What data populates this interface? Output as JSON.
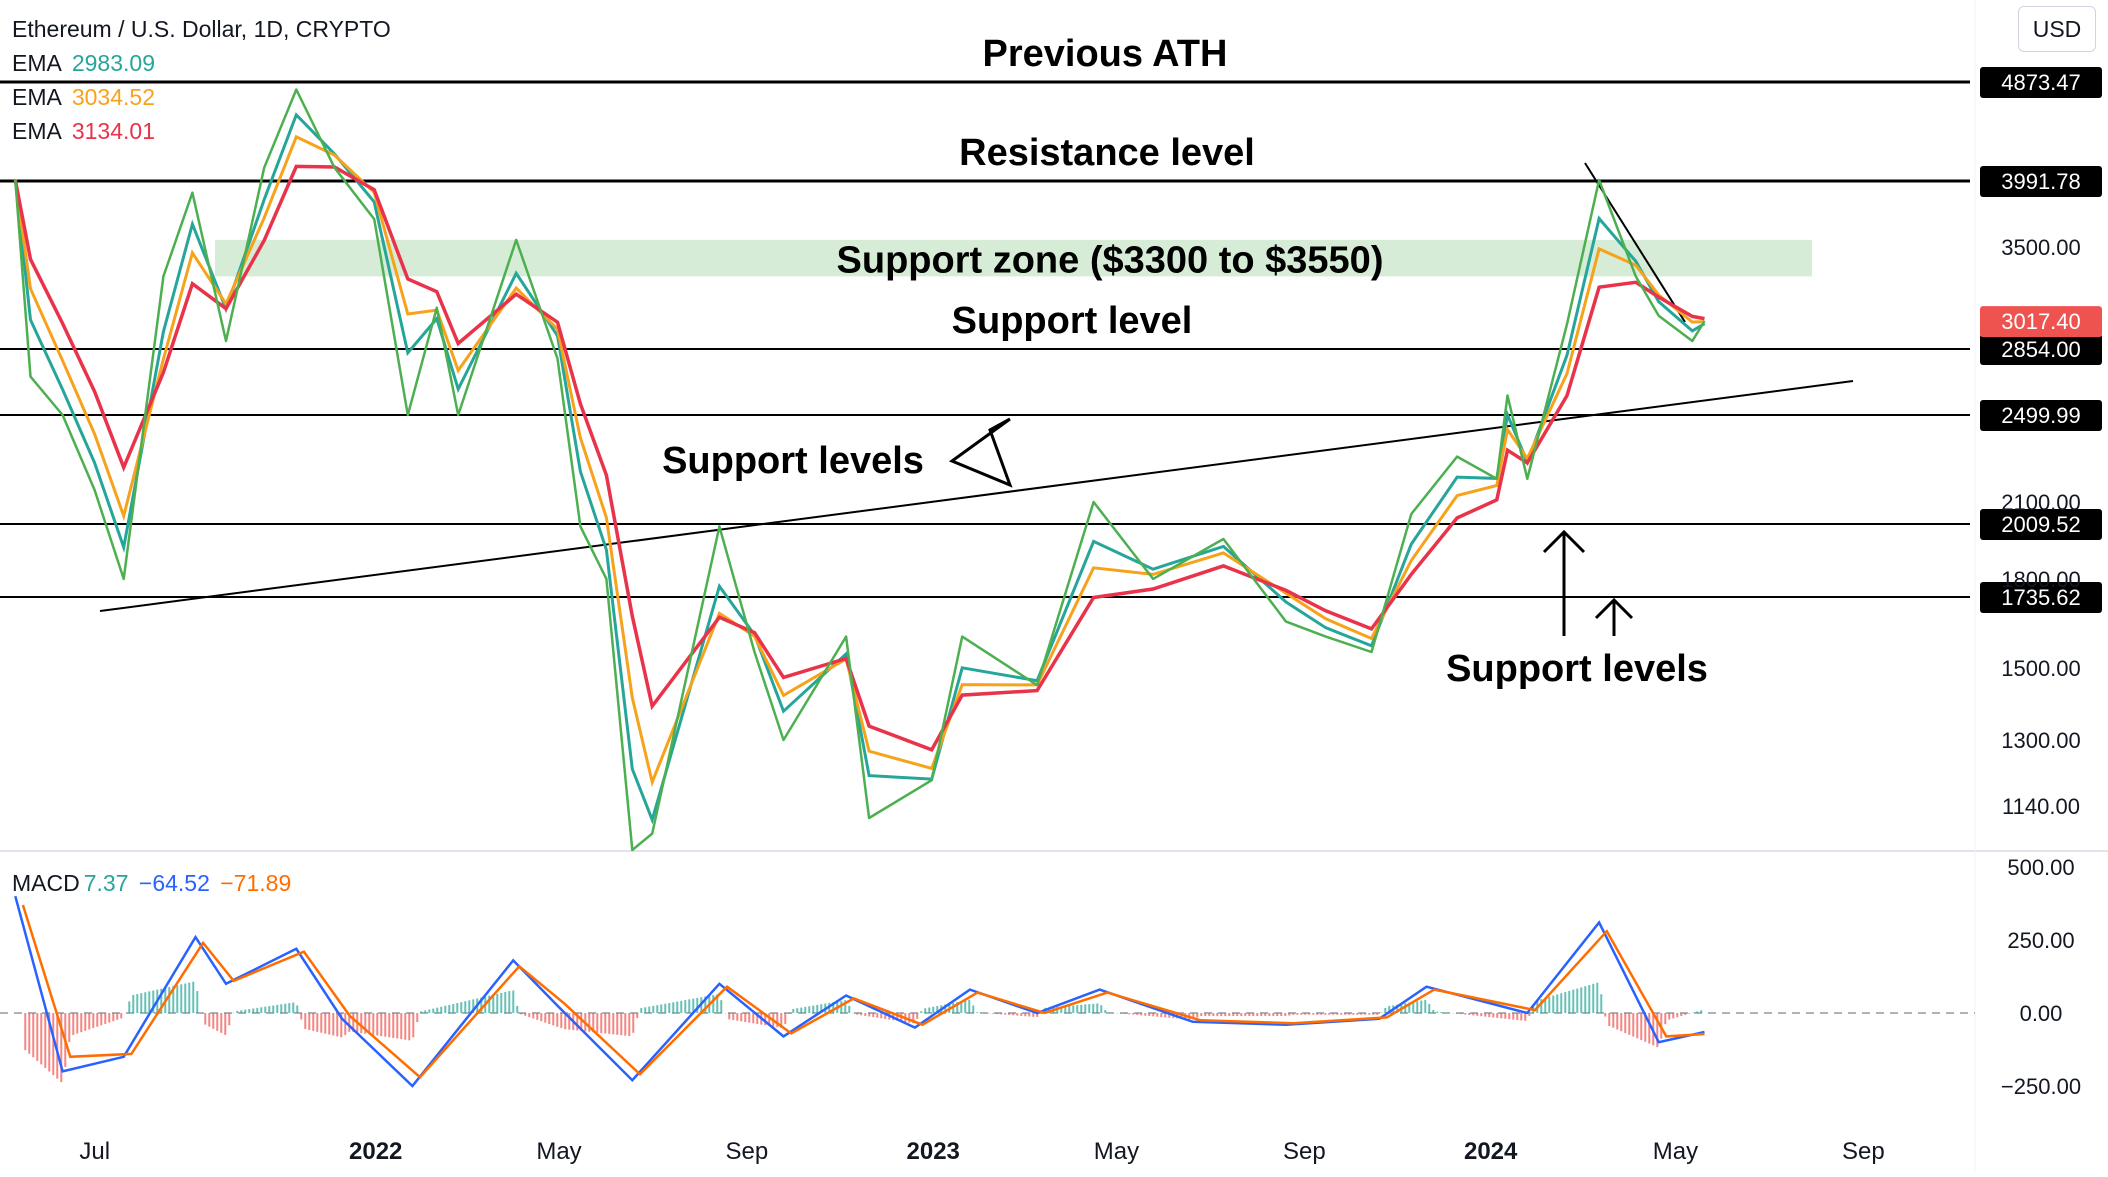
{
  "header": {
    "symbol_title": "Ethereum / U.S. Dollar, 1D, CRYPTO",
    "currency_button": "USD",
    "ema_legend": [
      {
        "label": "EMA",
        "value": "2983.09",
        "color": "#26a69a"
      },
      {
        "label": "EMA",
        "value": "3034.52",
        "color": "#f7a21b"
      },
      {
        "label": "EMA",
        "value": "3134.01",
        "color": "#e8334a"
      }
    ]
  },
  "chart_data": [
    {
      "type": "line",
      "title": "Ethereum / U.S. Dollar, 1D, CRYPTO",
      "price_axis_ticks": [
        "3500.00",
        "2100.00",
        "1800.00",
        "1500.00",
        "1300.00",
        "1140.00"
      ],
      "time_axis_ticks": [
        "Jul",
        "2022",
        "May",
        "Sep",
        "2023",
        "May",
        "Sep",
        "2024",
        "May",
        "Sep"
      ],
      "current_price": "3017.40",
      "horizontal_levels": [
        {
          "label": "Previous ATH",
          "price": 4873.47,
          "price_label": "4873.47"
        },
        {
          "label": "Resistance level",
          "price": 3991.78,
          "price_label": "3991.78"
        },
        {
          "label": "Support level",
          "price": 2854.0,
          "price_label": "2854.00"
        },
        {
          "label": "",
          "price": 2499.99,
          "price_label": "2499.99"
        },
        {
          "label": "",
          "price": 2009.52,
          "price_label": "2009.52"
        },
        {
          "label": "",
          "price": 1735.62,
          "price_label": "1735.62"
        }
      ],
      "support_zone": {
        "label": "Support zone ($3300 to $3550)",
        "low": 3300,
        "high": 3550
      },
      "annotations": [
        "Support levels",
        "Support levels"
      ],
      "series": [
        {
          "name": "ETH/USD",
          "color": "#4caf50",
          "points": [
            [
              "2021-05-10",
              4000
            ],
            [
              "2021-05-20",
              2700
            ],
            [
              "2021-06-10",
              2500
            ],
            [
              "2021-07-01",
              2150
            ],
            [
              "2021-07-20",
              1800
            ],
            [
              "2021-08-15",
              3300
            ],
            [
              "2021-09-03",
              3900
            ],
            [
              "2021-09-25",
              2900
            ],
            [
              "2021-10-20",
              4100
            ],
            [
              "2021-11-10",
              4800
            ],
            [
              "2021-12-05",
              4100
            ],
            [
              "2021-12-31",
              3700
            ],
            [
              "2022-01-22",
              2500
            ],
            [
              "2022-02-10",
              3100
            ],
            [
              "2022-02-24",
              2500
            ],
            [
              "2022-04-03",
              3550
            ],
            [
              "2022-04-30",
              2800
            ],
            [
              "2022-05-15",
              2000
            ],
            [
              "2022-06-01",
              1800
            ],
            [
              "2022-06-18",
              1000
            ],
            [
              "2022-07-01",
              1050
            ],
            [
              "2022-08-14",
              2000
            ],
            [
              "2022-09-06",
              1550
            ],
            [
              "2022-09-25",
              1300
            ],
            [
              "2022-11-05",
              1600
            ],
            [
              "2022-11-20",
              1100
            ],
            [
              "2022-12-31",
              1200
            ],
            [
              "2023-01-20",
              1600
            ],
            [
              "2023-03-10",
              1450
            ],
            [
              "2023-04-16",
              2100
            ],
            [
              "2023-05-25",
              1800
            ],
            [
              "2023-07-10",
              1950
            ],
            [
              "2023-08-20",
              1650
            ],
            [
              "2023-09-15",
              1600
            ],
            [
              "2023-10-15",
              1550
            ],
            [
              "2023-11-10",
              2050
            ],
            [
              "2023-12-10",
              2300
            ],
            [
              "2024-01-05",
              2200
            ],
            [
              "2024-01-12",
              2600
            ],
            [
              "2024-01-25",
              2200
            ],
            [
              "2024-02-20",
              3000
            ],
            [
              "2024-03-12",
              4000
            ],
            [
              "2024-04-05",
              3300
            ],
            [
              "2024-04-20",
              3050
            ],
            [
              "2024-05-12",
              2900
            ],
            [
              "2024-05-20",
              3017
            ]
          ]
        }
      ]
    },
    {
      "type": "line",
      "title": "MACD",
      "legend": {
        "label": "MACD",
        "histogram": "7.37",
        "macd": "−64.52",
        "signal": "−71.89"
      },
      "y_ticks": [
        "500.00",
        "250.00",
        "0.00",
        "−250.00"
      ],
      "series": [
        {
          "name": "MACD",
          "color": "#2962ff",
          "points": [
            [
              "2021-05-10",
              400
            ],
            [
              "2021-06-10",
              -200
            ],
            [
              "2021-07-20",
              -150
            ],
            [
              "2021-09-05",
              260
            ],
            [
              "2021-09-25",
              100
            ],
            [
              "2021-11-10",
              220
            ],
            [
              "2021-12-10",
              -20
            ],
            [
              "2022-01-25",
              -250
            ],
            [
              "2022-04-01",
              180
            ],
            [
              "2022-05-01",
              20
            ],
            [
              "2022-06-18",
              -230
            ],
            [
              "2022-08-14",
              100
            ],
            [
              "2022-09-25",
              -80
            ],
            [
              "2022-11-05",
              60
            ],
            [
              "2022-12-20",
              -50
            ],
            [
              "2023-01-25",
              80
            ],
            [
              "2023-03-10",
              0
            ],
            [
              "2023-04-20",
              80
            ],
            [
              "2023-06-20",
              -30
            ],
            [
              "2023-08-20",
              -40
            ],
            [
              "2023-10-20",
              -20
            ],
            [
              "2023-11-20",
              90
            ],
            [
              "2024-01-25",
              0
            ],
            [
              "2024-03-12",
              310
            ],
            [
              "2024-04-20",
              -100
            ],
            [
              "2024-05-20",
              -65
            ]
          ]
        },
        {
          "name": "Signal",
          "color": "#ff6d00",
          "points": [
            [
              "2021-05-15",
              370
            ],
            [
              "2021-06-15",
              -150
            ],
            [
              "2021-07-25",
              -140
            ],
            [
              "2021-09-10",
              240
            ],
            [
              "2021-09-30",
              110
            ],
            [
              "2021-11-15",
              210
            ],
            [
              "2021-12-15",
              -10
            ],
            [
              "2022-01-30",
              -220
            ],
            [
              "2022-04-05",
              160
            ],
            [
              "2022-05-05",
              30
            ],
            [
              "2022-06-23",
              -210
            ],
            [
              "2022-08-19",
              90
            ],
            [
              "2022-09-30",
              -70
            ],
            [
              "2022-11-10",
              50
            ],
            [
              "2022-12-25",
              -40
            ],
            [
              "2023-01-30",
              70
            ],
            [
              "2023-03-15",
              0
            ],
            [
              "2023-04-25",
              70
            ],
            [
              "2023-06-25",
              -25
            ],
            [
              "2023-08-25",
              -35
            ],
            [
              "2023-10-25",
              -15
            ],
            [
              "2023-11-25",
              80
            ],
            [
              "2024-01-30",
              10
            ],
            [
              "2024-03-17",
              280
            ],
            [
              "2024-04-25",
              -80
            ],
            [
              "2024-05-20",
              -72
            ]
          ]
        }
      ]
    }
  ]
}
